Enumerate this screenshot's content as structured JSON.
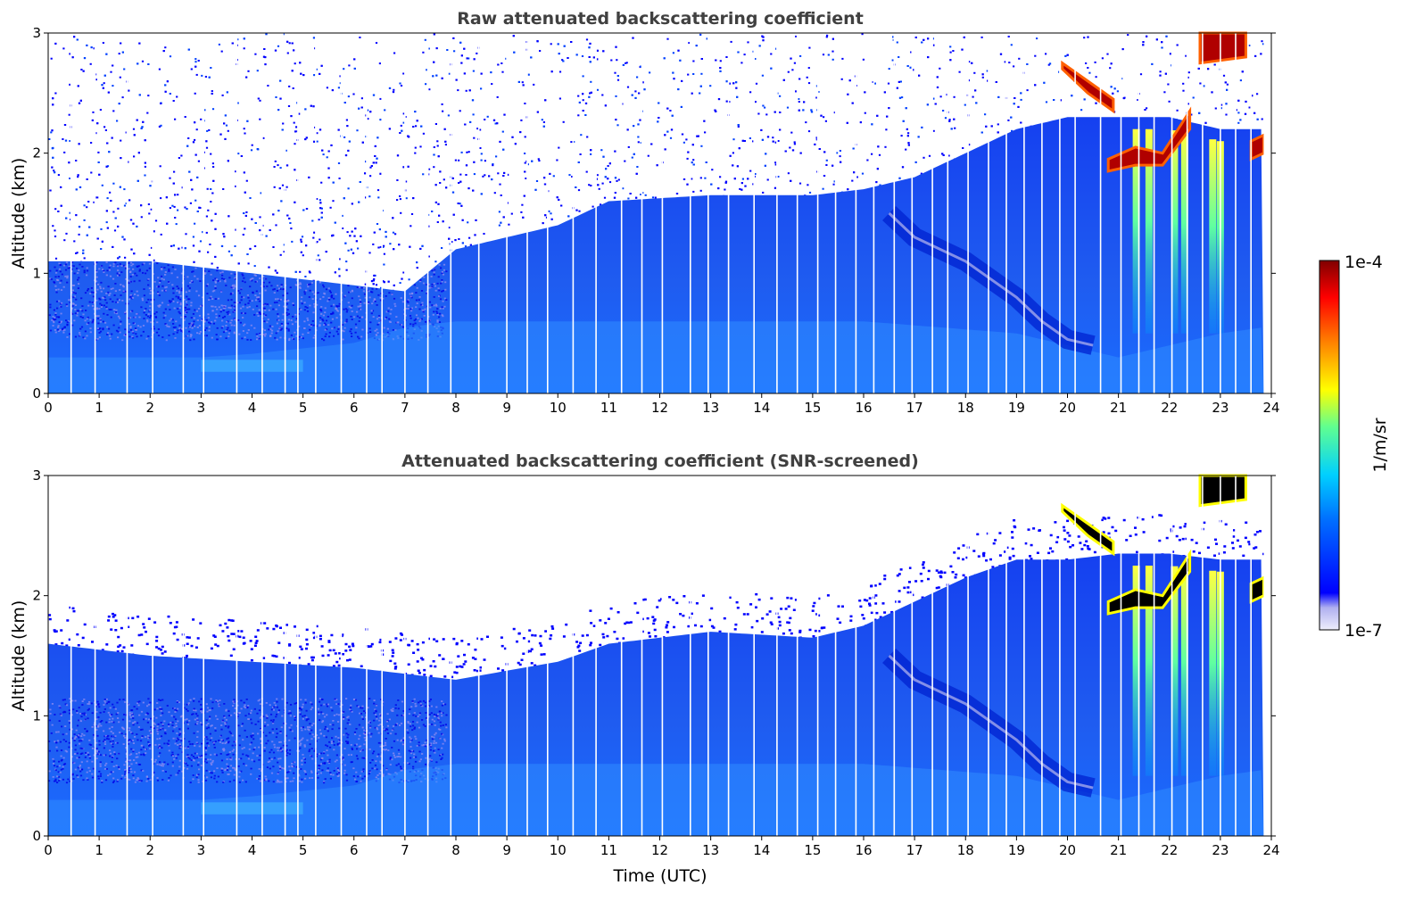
{
  "chart_data": [
    {
      "type": "heatmap",
      "title": "Raw attenuated backscattering coefficient",
      "xlabel": "",
      "ylabel": "Altitude (km)",
      "xlim": [
        0,
        24
      ],
      "ylim": [
        0,
        3
      ],
      "xticks": [
        "0",
        "1",
        "2",
        "3",
        "4",
        "5",
        "6",
        "7",
        "8",
        "9",
        "10",
        "11",
        "12",
        "13",
        "14",
        "15",
        "16",
        "17",
        "18",
        "19",
        "20",
        "21",
        "22",
        "23",
        "24"
      ],
      "yticks": [
        "0",
        "1",
        "2",
        "3"
      ],
      "screened": false,
      "boundary_layer_top_km": {
        "time_utc": [
          0,
          2,
          4,
          6,
          7,
          8,
          10,
          11,
          13,
          15,
          16,
          17,
          18,
          19,
          20,
          21,
          22,
          23,
          24
        ],
        "alt": [
          1.1,
          1.1,
          1.0,
          0.9,
          0.85,
          1.2,
          1.4,
          1.6,
          1.65,
          1.65,
          1.7,
          1.8,
          2.0,
          2.2,
          2.3,
          2.3,
          2.3,
          2.2,
          2.2
        ]
      },
      "aerosol_layer_km": {
        "time_utc": [
          16.5,
          17,
          18,
          19,
          19.5,
          20,
          20.5
        ],
        "alt": [
          1.5,
          1.3,
          1.1,
          0.8,
          0.6,
          0.45,
          0.4
        ]
      },
      "clouds": [
        {
          "t0": 19.9,
          "t1": 20.9,
          "alt_top": [
            2.75,
            2.6,
            2.45
          ],
          "alt_bottom": [
            2.7,
            2.5,
            2.35
          ]
        },
        {
          "t0": 20.8,
          "t1": 22.4,
          "alt_top": [
            1.95,
            2.05,
            2.0,
            2.35
          ],
          "alt_bottom": [
            1.85,
            1.9,
            1.9,
            2.2
          ]
        },
        {
          "t0": 23.6,
          "t1": 23.85,
          "alt_top": [
            2.1,
            2.15
          ],
          "alt_bottom": [
            1.95,
            2.0
          ]
        },
        {
          "t0": 22.6,
          "t1": 23.5,
          "alt_top": [
            3.0,
            3.0
          ],
          "alt_bottom": [
            2.75,
            2.8
          ]
        }
      ],
      "precip_streaks_utc": [
        21.35,
        21.6,
        22.1,
        22.3,
        22.85,
        23.0
      ]
    },
    {
      "type": "heatmap",
      "title": "Attenuated backscattering coefficient (SNR-screened)",
      "xlabel": "Time (UTC)",
      "ylabel": "Altitude (km)",
      "xlim": [
        0,
        24
      ],
      "ylim": [
        0,
        3
      ],
      "xticks": [
        "0",
        "1",
        "2",
        "3",
        "4",
        "5",
        "6",
        "7",
        "8",
        "9",
        "10",
        "11",
        "12",
        "13",
        "14",
        "15",
        "16",
        "17",
        "18",
        "19",
        "20",
        "21",
        "22",
        "23",
        "24"
      ],
      "yticks": [
        "0",
        "1",
        "2",
        "3"
      ],
      "screened": true,
      "boundary_layer_top_km": {
        "time_utc": [
          0,
          2,
          4,
          6,
          7,
          8,
          10,
          11,
          13,
          15,
          16,
          17,
          18,
          19,
          20,
          21,
          22,
          23,
          24
        ],
        "alt": [
          1.6,
          1.5,
          1.45,
          1.4,
          1.35,
          1.3,
          1.45,
          1.6,
          1.7,
          1.65,
          1.75,
          1.95,
          2.15,
          2.3,
          2.3,
          2.35,
          2.35,
          2.3,
          2.3
        ]
      },
      "aerosol_layer_km": {
        "time_utc": [
          16.5,
          17,
          18,
          19,
          19.5,
          20,
          20.5
        ],
        "alt": [
          1.5,
          1.3,
          1.1,
          0.8,
          0.6,
          0.45,
          0.4
        ]
      },
      "clouds": [
        {
          "t0": 19.9,
          "t1": 20.9,
          "alt_top": [
            2.75,
            2.6,
            2.45
          ],
          "alt_bottom": [
            2.7,
            2.5,
            2.35
          ]
        },
        {
          "t0": 20.8,
          "t1": 22.4,
          "alt_top": [
            1.95,
            2.05,
            2.0,
            2.35
          ],
          "alt_bottom": [
            1.85,
            1.9,
            1.9,
            2.2
          ]
        },
        {
          "t0": 23.6,
          "t1": 23.85,
          "alt_top": [
            2.1,
            2.15
          ],
          "alt_bottom": [
            1.95,
            2.0
          ]
        },
        {
          "t0": 22.6,
          "t1": 23.5,
          "alt_top": [
            3.0,
            3.0
          ],
          "alt_bottom": [
            2.75,
            2.8
          ]
        }
      ],
      "precip_streaks_utc": [
        21.35,
        21.6,
        22.1,
        22.3,
        22.85,
        23.0
      ]
    }
  ],
  "colorbar": {
    "label": "1/m/sr",
    "max_label": "1e-4",
    "min_label": "1e-7",
    "colormap": "jet",
    "colors": [
      "#e8e8f8",
      "#0000ff",
      "#0080ff",
      "#00e0ff",
      "#80ff80",
      "#ffff00",
      "#ff8000",
      "#ff0000",
      "#800000"
    ]
  },
  "data_gaps_utc": [
    0.45,
    0.92,
    1.55,
    2.05,
    2.65,
    3.05,
    3.7,
    4.2,
    4.65,
    4.9,
    5.25,
    5.75,
    6.25,
    6.55,
    7.0,
    7.45,
    7.9,
    8.45,
    9.0,
    9.4,
    9.8,
    10.3,
    10.75,
    11.25,
    11.65,
    12.05,
    12.6,
    12.95,
    13.35,
    13.85,
    14.3,
    14.7,
    15.1,
    15.45,
    15.85,
    16.2,
    16.6,
    16.95,
    17.35,
    17.65,
    18.05,
    18.45,
    18.8,
    19.15,
    19.5,
    19.85,
    20.15,
    20.65,
    21.05,
    21.4,
    21.7,
    22.05,
    22.35,
    22.65,
    23.0,
    23.3,
    23.6
  ]
}
